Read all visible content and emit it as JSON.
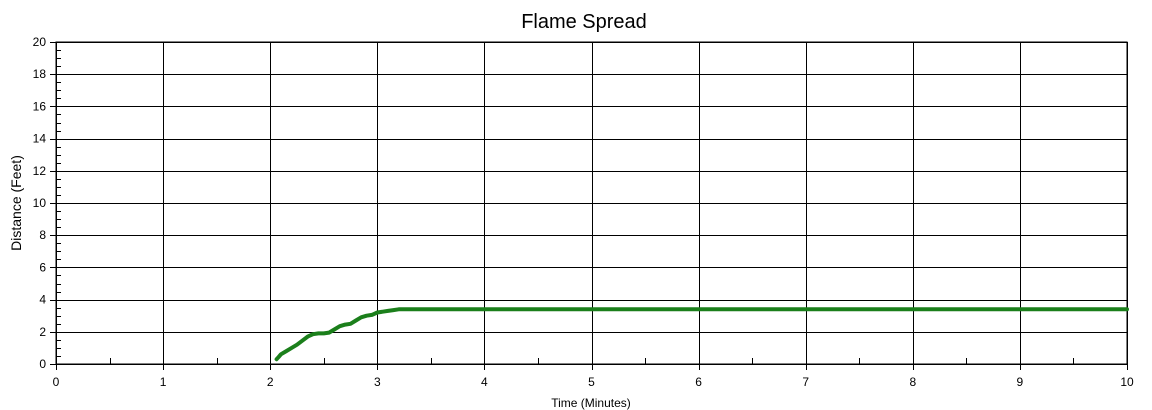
{
  "chart_data": {
    "type": "line",
    "title": "Flame Spread",
    "xlabel": "Time (Minutes)",
    "ylabel": "Distance (Feet)",
    "xlim": [
      0,
      10
    ],
    "ylim": [
      0,
      20
    ],
    "x_ticks": [
      0,
      1,
      2,
      3,
      4,
      5,
      6,
      7,
      8,
      9,
      10
    ],
    "y_ticks": [
      0,
      2,
      4,
      6,
      8,
      10,
      12,
      14,
      16,
      18,
      20
    ],
    "x_minor_step": 0.5,
    "y_minor_step": 0.5,
    "grid": true,
    "legend": "none",
    "series": [
      {
        "color": "#1b7f1b",
        "x": [
          2.06,
          2.08,
          2.1,
          2.15,
          2.2,
          2.25,
          2.3,
          2.35,
          2.4,
          2.45,
          2.5,
          2.55,
          2.6,
          2.65,
          2.7,
          2.75,
          2.8,
          2.85,
          2.9,
          2.95,
          3.0,
          3.05,
          3.1,
          3.15,
          3.2,
          3.25,
          3.5,
          4.0,
          5.0,
          6.0,
          7.0,
          8.0,
          9.0,
          10.0
        ],
        "y": [
          0.3,
          0.45,
          0.6,
          0.8,
          1.0,
          1.2,
          1.45,
          1.7,
          1.85,
          1.9,
          1.9,
          1.95,
          2.15,
          2.35,
          2.45,
          2.5,
          2.7,
          2.9,
          3.0,
          3.05,
          3.2,
          3.25,
          3.3,
          3.35,
          3.4,
          3.4,
          3.4,
          3.4,
          3.4,
          3.4,
          3.4,
          3.4,
          3.4,
          3.4
        ]
      }
    ]
  }
}
